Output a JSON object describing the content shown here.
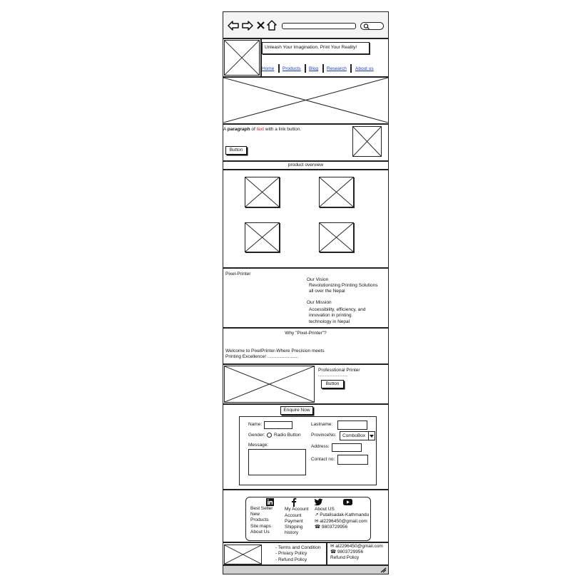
{
  "browser": {
    "back_icon": "arrow-left-icon",
    "forward_icon": "arrow-right-icon",
    "close_icon": "close-icon",
    "home_icon": "home-icon",
    "search_icon": "search-icon"
  },
  "header": {
    "tagline": "Unleash Your Imagination, Print Your Reality!",
    "nav": [
      "Home",
      "Products",
      "Blog",
      "Research",
      "About us"
    ]
  },
  "intro": {
    "text_before": "A ",
    "bold_word": "paragraph",
    "text_mid": " of ",
    "red_word": "text",
    "text_after": " with a link button.",
    "button_label": "Button"
  },
  "overview": {
    "title": "product overview"
  },
  "about": {
    "brand": "Pixel-Printer",
    "vision_title": "Our Vision",
    "vision_lines": [
      "Revolutionizing Printing Solutions",
      "all over the Nepal"
    ],
    "mission_title": "Our Mission",
    "mission_lines": [
      "Accessibility, efficiency, and",
      "innovation in printing",
      "technology in Nepal"
    ]
  },
  "why": {
    "title": "Why \"Pixel-Printer\"?",
    "line1": "Welcome to PixelPrinter-Where Precision meets",
    "line2": "Printing Excellence! ........................"
  },
  "pro": {
    "title": "Professtional Printer",
    "dots": "..............................",
    "button_label": "Button"
  },
  "enquire": {
    "button_label": "Enquire Now",
    "name_label": "Name:",
    "lastname_label": "Lastname:",
    "gender_label": "Gender:",
    "radio_label": "Radio Button",
    "province_label": "ProvinceNo:",
    "combo_value": "ComboBox",
    "message_label": "Message:",
    "address_label": "Address:",
    "contact_label": "Contact no:"
  },
  "social": [
    "linkedin-icon",
    "facebook-icon",
    "twitter-icon",
    "youtube-icon"
  ],
  "footer_cols": {
    "col1": [
      "Best Seller",
      "New",
      "Products",
      "Site maps",
      "About Us"
    ],
    "col2": [
      "My Account",
      "Account",
      "Payment",
      "Shipping",
      "history"
    ],
    "col3_title": "About US",
    "address": "Putalisadak-Kathmandu",
    "email": "al2296450@gmail.com",
    "phone": "9803729956"
  },
  "bottom": {
    "links": [
      "- Terms and Condition",
      "- Privacy Policy",
      "- Refund Policy"
    ],
    "email": "al2296450@gmail.com",
    "phone": "9803729956",
    "refund": "Refund Policy"
  }
}
